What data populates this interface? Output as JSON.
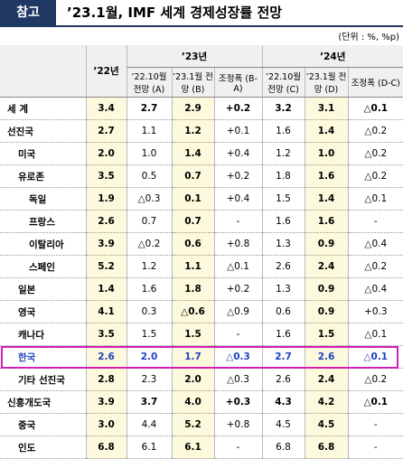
{
  "header": {
    "badge": "참고",
    "title": "’23.1월, IMF 세계 경제성장률 전망",
    "unit": "(단위 : %, %p)"
  },
  "table": {
    "year_headers": [
      "’22년",
      "’23년",
      "’24년"
    ],
    "sub_headers": [
      "’22.10월 전망 (A)",
      "’23.1월 전망 (B)",
      "조정폭 (B-A)",
      "’22.10월 전망 (C)",
      "’23.1월 전망 (D)",
      "조정폭 (D-C)"
    ],
    "rows": [
      {
        "label": "세 계",
        "values": [
          "3.4",
          "2.7",
          "2.9",
          "+0.2",
          "3.2",
          "3.1",
          "△0.1"
        ]
      },
      {
        "label": "선진국",
        "values": [
          "2.7",
          "1.1",
          "1.2",
          "+0.1",
          "1.6",
          "1.4",
          "△0.2"
        ]
      },
      {
        "label": "미국",
        "values": [
          "2.0",
          "1.0",
          "1.4",
          "+0.4",
          "1.2",
          "1.0",
          "△0.2"
        ]
      },
      {
        "label": "유로존",
        "values": [
          "3.5",
          "0.5",
          "0.7",
          "+0.2",
          "1.8",
          "1.6",
          "△0.2"
        ]
      },
      {
        "label": "독일",
        "values": [
          "1.9",
          "△0.3",
          "0.1",
          "+0.4",
          "1.5",
          "1.4",
          "△0.1"
        ]
      },
      {
        "label": "프랑스",
        "values": [
          "2.6",
          "0.7",
          "0.7",
          "-",
          "1.6",
          "1.6",
          "-"
        ]
      },
      {
        "label": "이탈리아",
        "values": [
          "3.9",
          "△0.2",
          "0.6",
          "+0.8",
          "1.3",
          "0.9",
          "△0.4"
        ]
      },
      {
        "label": "스페인",
        "values": [
          "5.2",
          "1.2",
          "1.1",
          "△0.1",
          "2.6",
          "2.4",
          "△0.2"
        ]
      },
      {
        "label": "일본",
        "values": [
          "1.4",
          "1.6",
          "1.8",
          "+0.2",
          "1.3",
          "0.9",
          "△0.4"
        ]
      },
      {
        "label": "영국",
        "values": [
          "4.1",
          "0.3",
          "△0.6",
          "△0.9",
          "0.6",
          "0.9",
          "+0.3"
        ]
      },
      {
        "label": "캐나다",
        "values": [
          "3.5",
          "1.5",
          "1.5",
          "-",
          "1.6",
          "1.5",
          "△0.1"
        ]
      },
      {
        "label": "한국",
        "values": [
          "2.6",
          "2.0",
          "1.7",
          "△0.3",
          "2.7",
          "2.6",
          "△0.1"
        ]
      },
      {
        "label": "기타 선진국",
        "values": [
          "2.8",
          "2.3",
          "2.0",
          "△0.3",
          "2.6",
          "2.4",
          "△0.2"
        ]
      },
      {
        "label": "신흥개도국",
        "values": [
          "3.9",
          "3.7",
          "4.0",
          "+0.3",
          "4.3",
          "4.2",
          "△0.1"
        ]
      },
      {
        "label": "중국",
        "values": [
          "3.0",
          "4.4",
          "5.2",
          "+0.8",
          "4.5",
          "4.5",
          "-"
        ]
      },
      {
        "label": "인도",
        "values": [
          "6.8",
          "6.1",
          "6.1",
          "-",
          "6.8",
          "6.8",
          "-"
        ]
      }
    ]
  }
}
